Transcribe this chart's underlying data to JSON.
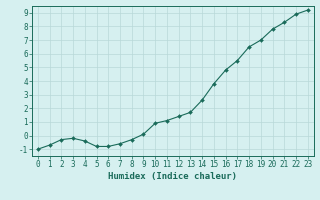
{
  "x": [
    0,
    1,
    2,
    3,
    4,
    5,
    6,
    7,
    8,
    9,
    10,
    11,
    12,
    13,
    14,
    15,
    16,
    17,
    18,
    19,
    20,
    21,
    22,
    23
  ],
  "y": [
    -1.0,
    -0.7,
    -0.3,
    -0.2,
    -0.4,
    -0.8,
    -0.8,
    -0.6,
    -0.3,
    0.1,
    0.9,
    1.1,
    1.4,
    1.7,
    2.6,
    3.8,
    4.8,
    5.5,
    6.5,
    7.0,
    7.8,
    8.3,
    8.9,
    9.2
  ],
  "line_color": "#1a6b5a",
  "marker": "D",
  "marker_size": 2.0,
  "bg_color": "#d6f0f0",
  "grid_color": "#b8d8d8",
  "axis_color": "#1a6b5a",
  "xlabel": "Humidex (Indice chaleur)",
  "xlim": [
    -0.5,
    23.5
  ],
  "ylim": [
    -1.5,
    9.5
  ],
  "xticks": [
    0,
    1,
    2,
    3,
    4,
    5,
    6,
    7,
    8,
    9,
    10,
    11,
    12,
    13,
    14,
    15,
    16,
    17,
    18,
    19,
    20,
    21,
    22,
    23
  ],
  "yticks": [
    -1,
    0,
    1,
    2,
    3,
    4,
    5,
    6,
    7,
    8,
    9
  ],
  "tick_fontsize": 5.5,
  "label_fontsize": 6.5
}
